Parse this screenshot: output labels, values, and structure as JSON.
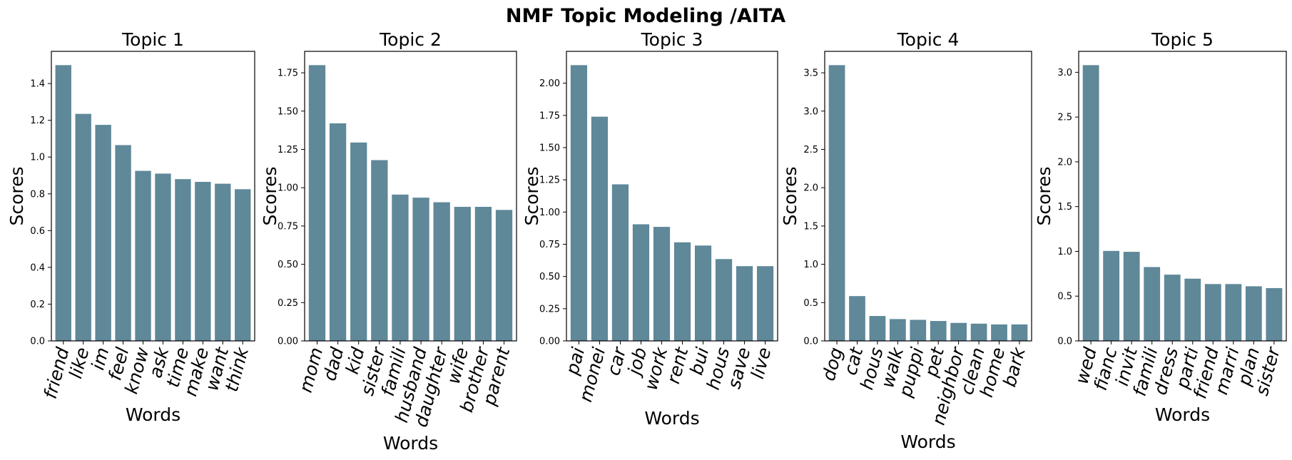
{
  "chart_data": {
    "type": "bar",
    "title": "NMF Topic Modeling /AITA",
    "bar_color": "#5f8899",
    "panels": [
      {
        "title": "Topic 1",
        "xlabel": "Words",
        "ylabel": "Scores",
        "categories": [
          "friend",
          "like",
          "im",
          "feel",
          "know",
          "ask",
          "time",
          "make",
          "want",
          "think"
        ],
        "values": [
          1.5,
          1.235,
          1.175,
          1.065,
          0.925,
          0.91,
          0.88,
          0.865,
          0.855,
          0.825
        ],
        "ylim": [
          0,
          1.575
        ],
        "yticks": [
          0,
          0.2,
          0.4,
          0.6,
          0.8,
          1.0,
          1.2,
          1.4
        ],
        "ytick_labels": [
          "0.0",
          "0.2",
          "0.4",
          "0.6",
          "0.8",
          "1.0",
          "1.2",
          "1.4"
        ]
      },
      {
        "title": "Topic 2",
        "xlabel": "Words",
        "ylabel": "Scores",
        "categories": [
          "mom",
          "dad",
          "kid",
          "sister",
          "famili",
          "husband",
          "daughter",
          "wife",
          "brother",
          "parent"
        ],
        "values": [
          1.8,
          1.42,
          1.295,
          1.18,
          0.955,
          0.935,
          0.905,
          0.875,
          0.875,
          0.855
        ],
        "ylim": [
          0,
          1.89
        ],
        "yticks": [
          0,
          0.25,
          0.5,
          0.75,
          1.0,
          1.25,
          1.5,
          1.75
        ],
        "ytick_labels": [
          "0.00",
          "0.25",
          "0.50",
          "0.75",
          "1.00",
          "1.25",
          "1.50",
          "1.75"
        ]
      },
      {
        "title": "Topic 3",
        "xlabel": "Words",
        "ylabel": "Scores",
        "categories": [
          "pai",
          "monei",
          "car",
          "job",
          "work",
          "rent",
          "bui",
          "hous",
          "save",
          "live"
        ],
        "values": [
          2.14,
          1.74,
          1.215,
          0.905,
          0.885,
          0.765,
          0.74,
          0.635,
          0.58,
          0.58
        ],
        "ylim": [
          0,
          2.247
        ],
        "yticks": [
          0,
          0.25,
          0.5,
          0.75,
          1.0,
          1.25,
          1.5,
          1.75,
          2.0
        ],
        "ytick_labels": [
          "0.00",
          "0.25",
          "0.50",
          "0.75",
          "1.00",
          "1.25",
          "1.50",
          "1.75",
          "2.00"
        ]
      },
      {
        "title": "Topic 4",
        "xlabel": "Words",
        "ylabel": "Scores",
        "categories": [
          "dog",
          "cat",
          "hous",
          "walk",
          "puppi",
          "pet",
          "neighbor",
          "clean",
          "home",
          "bark"
        ],
        "values": [
          3.6,
          0.585,
          0.325,
          0.285,
          0.275,
          0.26,
          0.235,
          0.225,
          0.215,
          0.215
        ],
        "ylim": [
          0,
          3.78
        ],
        "yticks": [
          0,
          0.5,
          1.0,
          1.5,
          2.0,
          2.5,
          3.0,
          3.5
        ],
        "ytick_labels": [
          "0.0",
          "0.5",
          "1.0",
          "1.5",
          "2.0",
          "2.5",
          "3.0",
          "3.5"
        ]
      },
      {
        "title": "Topic 5",
        "xlabel": "Words",
        "ylabel": "Scores",
        "categories": [
          "wed",
          "fianc",
          "invit",
          "famili",
          "dress",
          "parti",
          "friend",
          "marri",
          "plan",
          "sister"
        ],
        "values": [
          3.08,
          1.005,
          0.995,
          0.825,
          0.74,
          0.695,
          0.635,
          0.635,
          0.61,
          0.59
        ],
        "ylim": [
          0,
          3.234
        ],
        "yticks": [
          0,
          0.5,
          1.0,
          1.5,
          2.0,
          2.5,
          3.0
        ],
        "ytick_labels": [
          "0.0",
          "0.5",
          "1.0",
          "1.5",
          "2.0",
          "2.5",
          "3.0"
        ]
      }
    ]
  }
}
